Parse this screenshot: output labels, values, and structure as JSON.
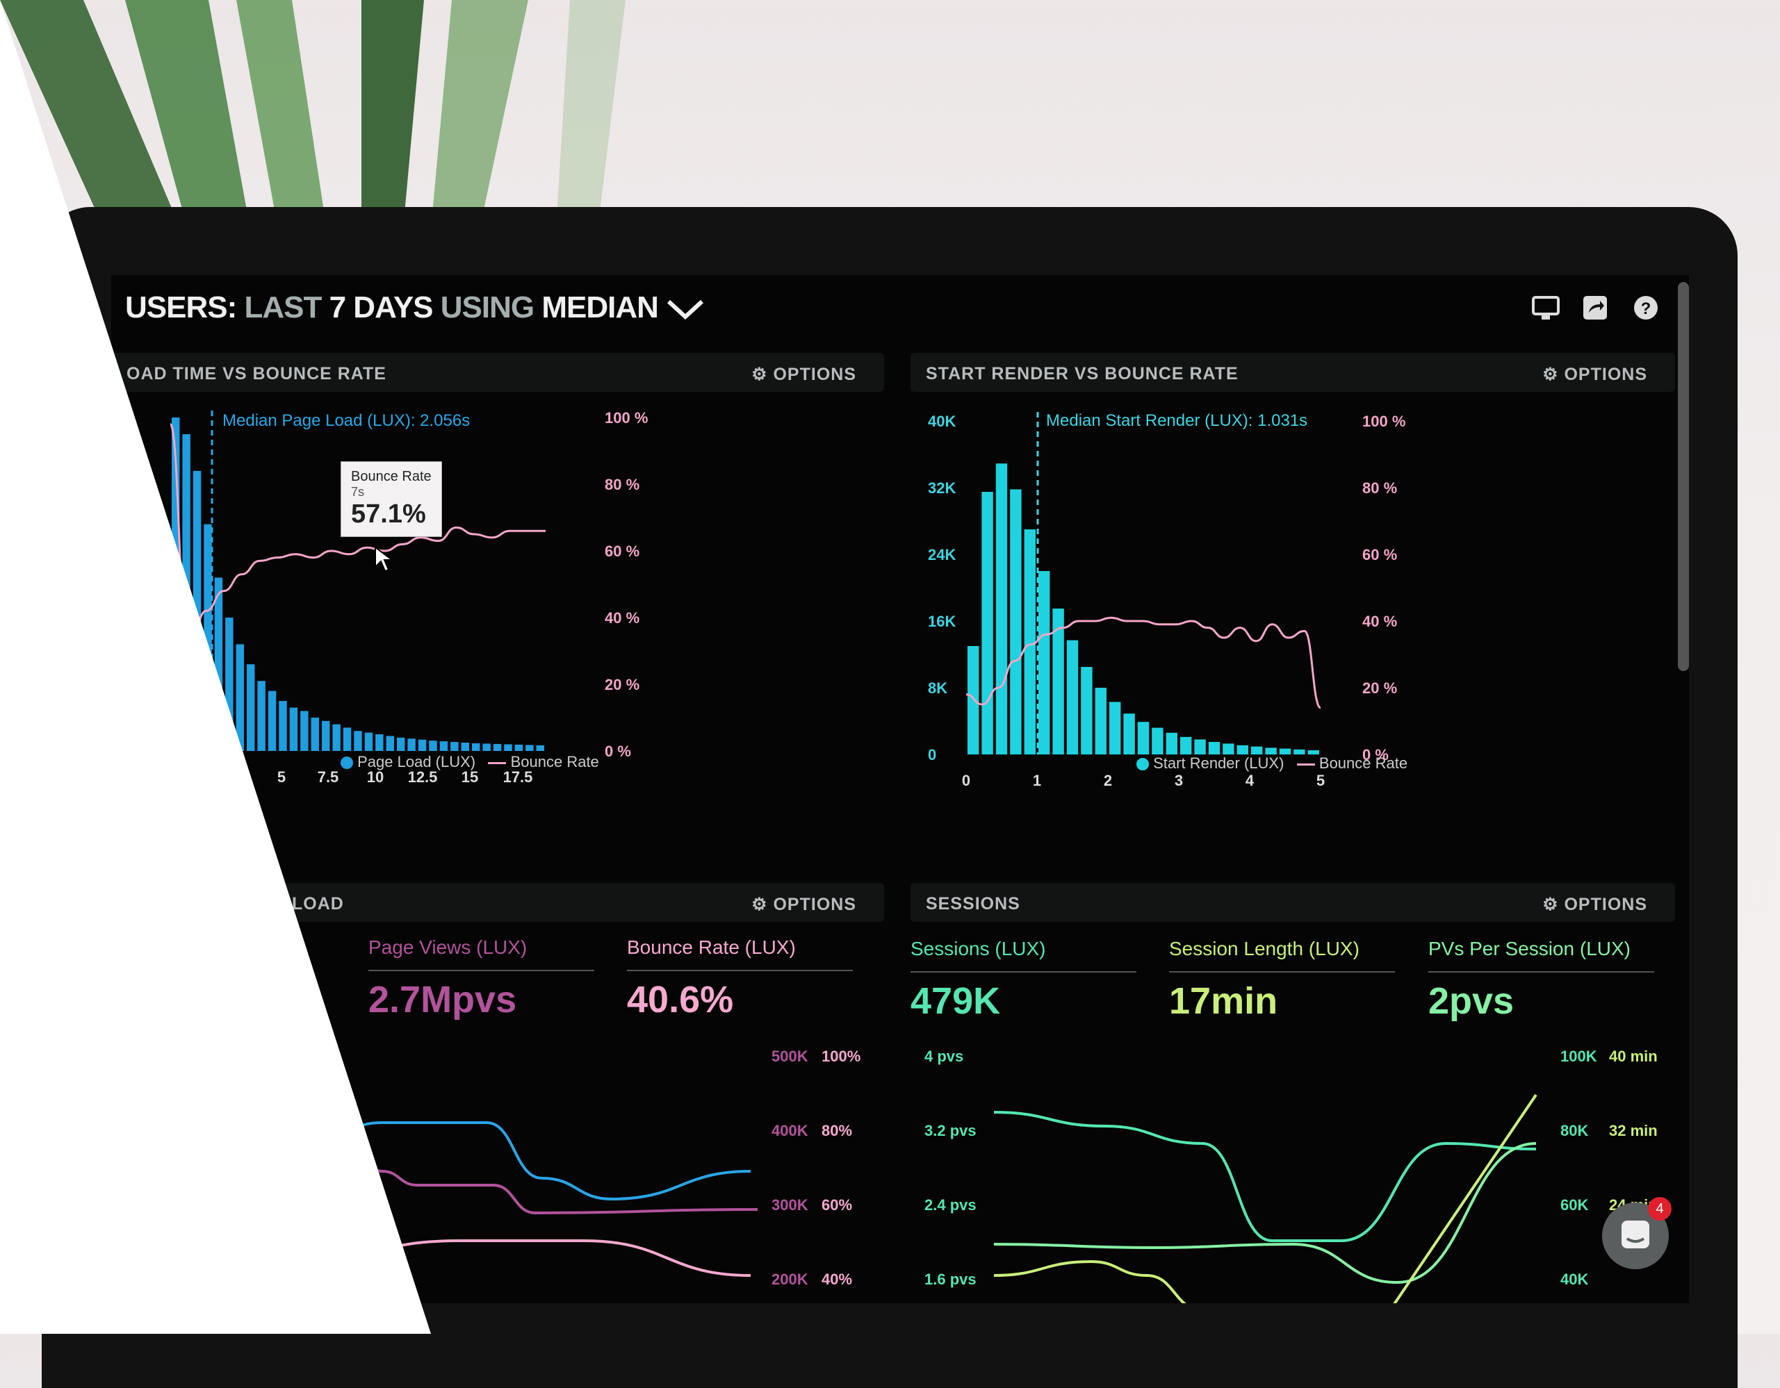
{
  "dashboard": {
    "title_part1": "USERS:",
    "title_part2": "LAST",
    "title_part3": "7 DAYS",
    "title_part4": "USING",
    "title_part5": "MEDIAN",
    "icons": [
      "monitor-icon",
      "share-icon",
      "help-icon"
    ]
  },
  "panel1": {
    "title": "OAD TIME VS BOUNCE RATE",
    "options": "⚙ OPTIONS",
    "median_label": "Median Page Load (LUX): 2.056s",
    "y_right": [
      "100 %",
      "80 %",
      "60 %",
      "40 %",
      "20 %",
      "0 %"
    ],
    "x_ticks": [
      "5",
      "7.5",
      "10",
      "12.5",
      "15",
      "17.5"
    ],
    "legend_a": "Page Load (LUX)",
    "legend_b": "Bounce Rate",
    "tooltip_title": "Bounce Rate",
    "tooltip_sub": "7s",
    "tooltip_value": "57.1%",
    "colors": {
      "bar": "#1f9ee0",
      "line": "#f4a6c8"
    }
  },
  "panel2": {
    "title": "START RENDER VS BOUNCE RATE",
    "options": "⚙ OPTIONS",
    "median_label": "Median Start Render (LUX): 1.031s",
    "y_left": [
      "40K",
      "32K",
      "24K",
      "16K",
      "8K",
      "0"
    ],
    "y_right": [
      "100 %",
      "80 %",
      "60 %",
      "40 %",
      "20 %",
      "0 %"
    ],
    "x_ticks": [
      "0",
      "1",
      "2",
      "3",
      "4",
      "5"
    ],
    "legend_a": "Start Render (LUX)",
    "legend_b": "Bounce Rate",
    "colors": {
      "bar": "#1ed3df",
      "line": "#f4a6c8"
    }
  },
  "panel3": {
    "title": "LOAD",
    "options": "⚙ OPTIONS",
    "kpi1_label": "Page Views (LUX)",
    "kpi1_value": "2.7Mpvs",
    "kpi2_label": "Bounce Rate (LUX)",
    "kpi2_value": "40.6%",
    "y_a": [
      "500K",
      "400K",
      "300K",
      "200K"
    ],
    "y_b": [
      "100%",
      "80%",
      "60%",
      "40%"
    ],
    "colors": {
      "views": "#b2539c",
      "bounce": "#f7a9cf",
      "blue": "#2aa5e6"
    }
  },
  "panel4": {
    "title": "SESSIONS",
    "options": "⚙ OPTIONS",
    "kpi1_label": "Sessions (LUX)",
    "kpi1_value": "479K",
    "kpi2_label": "Session Length (LUX)",
    "kpi2_value": "17min",
    "kpi3_label": "PVs Per Session (LUX)",
    "kpi3_value": "2pvs",
    "y_left": [
      "4 pvs",
      "3.2 pvs",
      "2.4 pvs",
      "1.6 pvs"
    ],
    "y_mid": [
      "100K",
      "80K",
      "60K",
      "40K"
    ],
    "y_right": [
      "40 min",
      "32 min",
      "24 min"
    ],
    "colors": {
      "sessions": "#55e6b1",
      "length": "#c9ef7a",
      "pvs": "#86f0a4"
    }
  },
  "chat_badge": "4",
  "chart_data": [
    {
      "type": "bar",
      "title": "OAD TIME VS BOUNCE RATE",
      "x_ticks": [
        "5",
        "7.5",
        "10",
        "12.5",
        "15",
        "17.5"
      ],
      "bar_values": [
        100,
        95,
        84,
        68,
        52,
        40,
        32,
        26,
        21,
        18,
        15,
        13,
        12,
        10,
        9,
        8,
        7,
        6,
        5.5,
        5,
        4.5,
        4,
        3.7,
        3.4,
        3.1,
        2.9,
        2.7,
        2.5,
        2.3,
        2.2,
        2.1,
        2.0,
        1.9,
        1.8,
        1.7
      ],
      "line_series": {
        "name": "Bounce Rate",
        "values_pct": [
          98,
          30,
          42,
          48,
          53,
          57,
          58,
          59,
          58,
          60,
          59,
          61,
          60,
          62,
          64,
          63,
          67,
          65,
          64,
          66,
          66,
          66
        ]
      }
    },
    {
      "type": "bar",
      "title": "START RENDER VS BOUNCE RATE",
      "x_ticks": [
        "0",
        "1",
        "2",
        "3",
        "4",
        "5"
      ],
      "ylim": [
        0,
        40000
      ],
      "bar_values": [
        13000,
        31500,
        34900,
        31800,
        27000,
        22000,
        17500,
        13700,
        10500,
        8000,
        6300,
        4900,
        3900,
        3200,
        2600,
        2100,
        1800,
        1500,
        1300,
        1100,
        950,
        800,
        700,
        600,
        500
      ],
      "line_series": {
        "name": "Bounce Rate",
        "values_pct": [
          18,
          15,
          20,
          28,
          33,
          36,
          38,
          40,
          40,
          41,
          40,
          40,
          39,
          39,
          40,
          38,
          35,
          38,
          34,
          39,
          35,
          37,
          14
        ]
      }
    }
  ]
}
